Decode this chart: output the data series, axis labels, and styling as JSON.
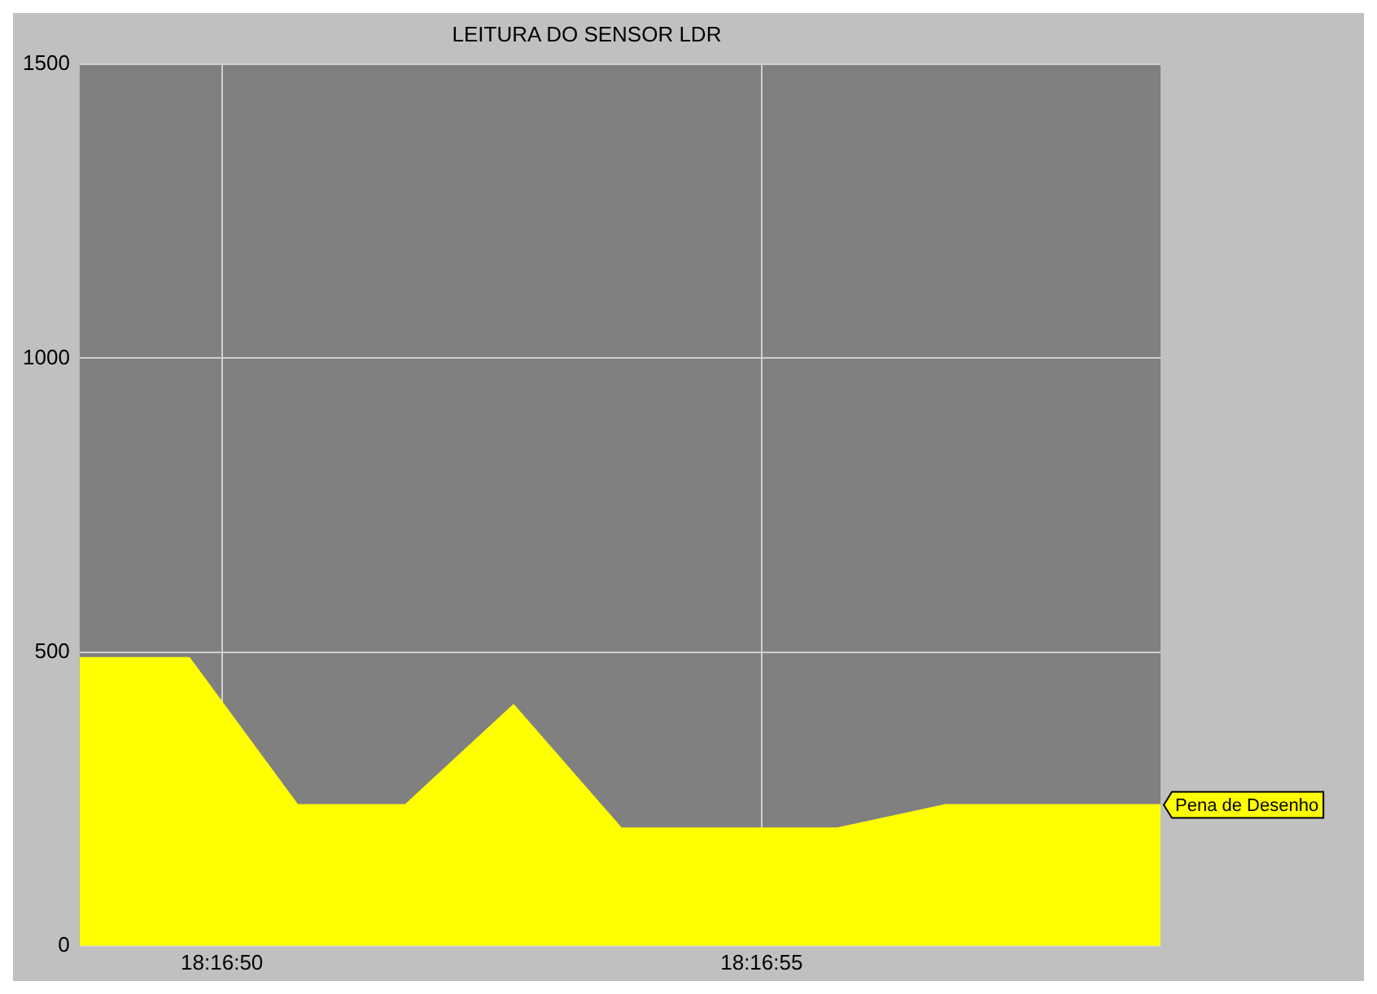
{
  "chart_data": {
    "type": "area",
    "title": "LEITURA DO SENSOR LDR",
    "x": [
      18.28019,
      18.280472,
      18.28075,
      18.281028,
      18.281306,
      18.281583,
      18.281861,
      18.282139,
      18.282417,
      18.282694,
      18.28297
    ],
    "series": [
      {
        "name": "Pena de Desenho",
        "color": "#ffff00",
        "values": [
          490,
          490,
          240,
          240,
          410,
          200,
          200,
          200,
          240,
          240,
          240
        ]
      }
    ],
    "xlim": [
      18.28019,
      18.28297
    ],
    "xticks": [
      {
        "value": 18.280556,
        "label": "18:16:50"
      },
      {
        "value": 18.281944,
        "label": "18:16:55"
      }
    ],
    "ylim": [
      0,
      1500
    ],
    "yticks": [
      0,
      500,
      1000,
      1500
    ],
    "grid": true,
    "legend": false
  }
}
